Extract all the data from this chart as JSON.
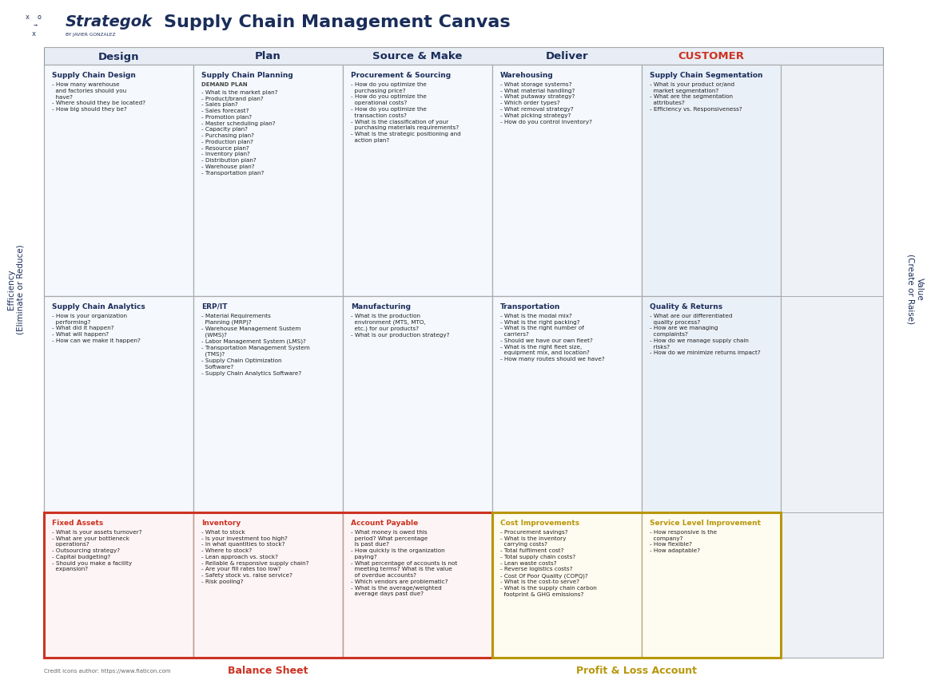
{
  "title": "Supply Chain Management Canvas",
  "brand": "Strategok",
  "brand_sub": "BY JAVIER GONZALEZ",
  "bg_color": "#ffffff",
  "canvas_bg": "#eef2f7",
  "col_headers": [
    "Design",
    "Plan",
    "Source & Make",
    "Deliver",
    "CUSTOMER"
  ],
  "col_header_colors": [
    "#1a2d5a",
    "#1a2d5a",
    "#1a2d5a",
    "#1a2d5a",
    "#cc3322"
  ],
  "red_border": "#cc3322",
  "gold_border": "#b8960a",
  "balance_sheet_color": "#cc3322",
  "profit_loss_color": "#b8960a",
  "credit_text": "Credit icons author: https://www.flaticon.com",
  "cells": [
    {
      "row": 0,
      "col": 0,
      "title": "Supply Chain Design",
      "title_color": "#1a2d5a",
      "border_color": "#aabbcc",
      "bg": "#f5f8fc",
      "subtitle": "",
      "content": "- How many warehouse\n  and factories should you\n  have?\n- Where should they be located?\n- How big should they be?"
    },
    {
      "row": 0,
      "col": 1,
      "title": "Supply Chain Planning",
      "title_color": "#1a2d5a",
      "border_color": "#aabbcc",
      "bg": "#f5f8fc",
      "subtitle": "DEMAND PLAN",
      "content": "- What is the market plan?\n- Product/brand plan?\n- Sales plan?\n- Sales forecast?\n- Promotion plan?\n- Master scheduling plan?\n- Capacity plan?\n- Purchasing plan?\n- Production plan?\n- Resource plan?\n- Inventory plan?\n- Distribution plan?\n- Warehouse plan?\n- Transportation plan?"
    },
    {
      "row": 0,
      "col": 2,
      "title": "Procurement & Sourcing",
      "title_color": "#1a2d5a",
      "border_color": "#aabbcc",
      "bg": "#f5f8fc",
      "subtitle": "",
      "content": "- How do you optimize the\n  purchasing price?\n- How do you optimize the\n  operational costs?\n- How do you optimize the\n  transaction costs?\n- What is the classification of your\n  purchasing materials requirements?\n- What is the strategic positioning and\n  action plan?"
    },
    {
      "row": 0,
      "col": 3,
      "title": "Warehousing",
      "title_color": "#1a2d5a",
      "border_color": "#aabbcc",
      "bg": "#f5f8fc",
      "subtitle": "",
      "content": "- What storage systems?\n- What material handling?\n- What putaway strategy?\n- Which order types?\n- What removal strategy?\n- What picking strategy?\n- How do you control inventory?"
    },
    {
      "row": 0,
      "col": 4,
      "title": "Supply Chain Segmentation",
      "title_color": "#1a2d5a",
      "border_color": "#aabbcc",
      "bg": "#eaf0f8",
      "subtitle": "",
      "content": "- What is your product or/and\n  market segmentation?\n- What are the segmentation\n  attributes?\n- Efficiency vs. Responsiveness?"
    },
    {
      "row": 1,
      "col": 0,
      "title": "Supply Chain Analytics",
      "title_color": "#1a2d5a",
      "border_color": "#aabbcc",
      "bg": "#f5f8fc",
      "subtitle": "",
      "content": "- How is your organization\n  performing?\n- What did it happen?\n- What will happen?\n- How can we make it happen?"
    },
    {
      "row": 1,
      "col": 1,
      "title": "ERP/IT",
      "title_color": "#1a2d5a",
      "border_color": "#aabbcc",
      "bg": "#f5f8fc",
      "subtitle": "",
      "content": "- Material Requirements\n  Planning (MRP)?\n- Warehouse Management Sustem\n  (WMS)?\n- Labor Management System (LMS)?\n- Transportation Management System\n  (TMS)?\n- Supply Chain Optimization\n  Software?\n- Supply Chain Analytics Software?"
    },
    {
      "row": 1,
      "col": 2,
      "title": "Manufacturing",
      "title_color": "#1a2d5a",
      "border_color": "#aabbcc",
      "bg": "#f5f8fc",
      "subtitle": "",
      "content": "- What is the production\n  environment (MTS, MTO,\n  etc.) for our products?\n- What is our production strategy?"
    },
    {
      "row": 1,
      "col": 3,
      "title": "Transportation",
      "title_color": "#1a2d5a",
      "border_color": "#aabbcc",
      "bg": "#f5f8fc",
      "subtitle": "",
      "content": "- What is the modal mix?\n- What is the right packing?\n- What is the right number of\n  carriers?\n- Should we have our own fleet?\n- What is the right fleet size,\n  equipment mix, and location?\n- How many routes should we have?"
    },
    {
      "row": 1,
      "col": 4,
      "title": "Quality & Returns",
      "title_color": "#1a2d5a",
      "border_color": "#aabbcc",
      "bg": "#eaf0f8",
      "subtitle": "",
      "content": "- What are our differentiated\n  quality process?\n- How are we managing\n  complaints?\n- How do we manage supply chain\n  risks?\n- How do we minimize returns impact?"
    },
    {
      "row": 2,
      "col": 0,
      "title": "Fixed Assets",
      "title_color": "#cc3322",
      "border_color": "#cc3322",
      "bg": "#fdf5f5",
      "subtitle": "",
      "content": "- What is your assets turnover?\n- What are your bottleneck\n  operations?\n- Outsourcing strategy?\n- Capital budgeting?\n- Should you make a facility\n  expansion?"
    },
    {
      "row": 2,
      "col": 1,
      "title": "Inventory",
      "title_color": "#cc3322",
      "border_color": "#cc3322",
      "bg": "#fdf5f5",
      "subtitle": "",
      "content": "- What to stock\n- Is your investment too high?\n- In what quantities to stock?\n- Where to stock?\n- Lean approach vs. stock?\n- Reliable & responsive supply chain?\n- Are your fill rates too low?\n- Safety stock vs. raise service?\n- Risk pooling?"
    },
    {
      "row": 2,
      "col": 2,
      "title": "Account Payable",
      "title_color": "#cc3322",
      "border_color": "#cc3322",
      "bg": "#fdf5f5",
      "subtitle": "",
      "content": "- What money is owed this\n  period? What percentage\n  is past due?\n- How quickly is the organization\n  paying?\n- What percentage of accounts is not\n  meeting terms? What is the value\n  of overdue accounts?\n- Which vendors are problematic?\n- What is the average/weighted\n  average days past due?"
    },
    {
      "row": 2,
      "col": 3,
      "title": "Cost Improvements",
      "title_color": "#b8960a",
      "border_color": "#b8960a",
      "bg": "#fefbf0",
      "subtitle": "",
      "content": "- Procurement savings?\n- What is the inventory\n  carrying costs?\n- Total fulfilment cost?\n- Total supply chain costs?\n- Lean waste costs?\n- Reverse logistics costs?\n- Cost Of Poor Quality (COPQ)?\n- What is the cost-to serve?\n- What is the supply chain carbon\n  footprint & GHG emissions?"
    },
    {
      "row": 2,
      "col": 4,
      "title": "Service Level Improvement",
      "title_color": "#b8960a",
      "border_color": "#b8960a",
      "bg": "#fefbf0",
      "subtitle": "",
      "content": "- How responsive is the\n  company?\n- How flexible?\n- How adaptable?"
    }
  ]
}
